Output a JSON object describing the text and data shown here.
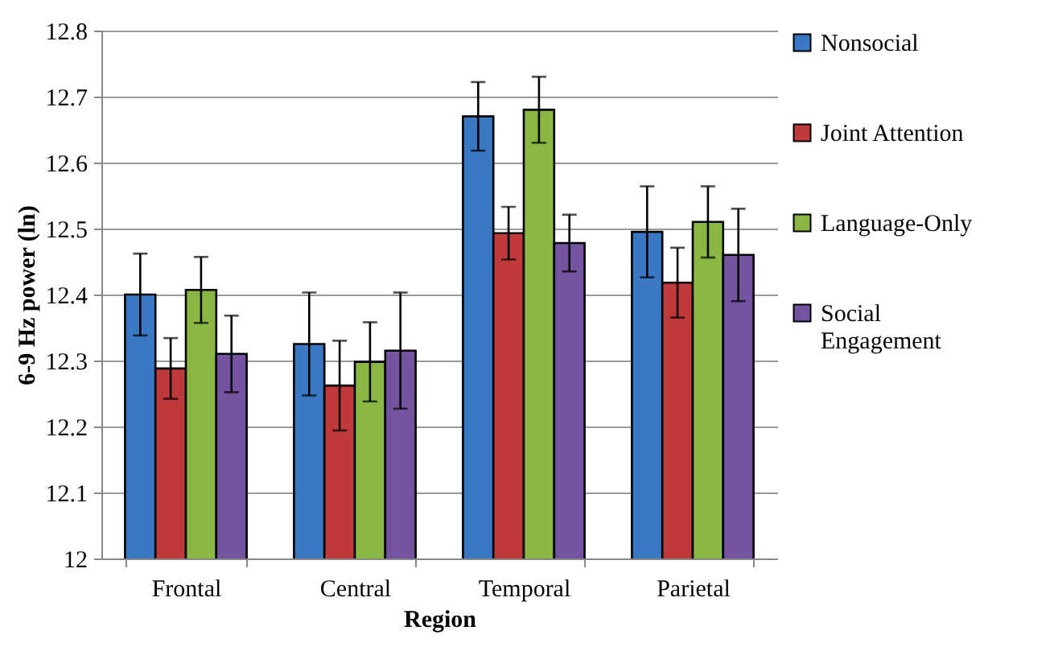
{
  "chart_data": {
    "type": "bar",
    "xlabel": "Region",
    "ylabel": "6-9 Hz power (ln)",
    "categories": [
      "Frontal",
      "Central",
      "Temporal",
      "Parietal"
    ],
    "series": [
      {
        "name": "Nonsocial",
        "color": "#3a78c3",
        "values": [
          12.4,
          12.325,
          12.67,
          12.495
        ],
        "errors": [
          0.062,
          0.078,
          0.052,
          0.069
        ]
      },
      {
        "name": "Joint Attention",
        "color": "#c0393b",
        "values": [
          12.288,
          12.262,
          12.493,
          12.418
        ],
        "errors": [
          0.046,
          0.068,
          0.04,
          0.053
        ]
      },
      {
        "name": "Language-Only",
        "color": "#8ab743",
        "values": [
          12.407,
          12.298,
          12.68,
          12.51
        ],
        "errors": [
          0.05,
          0.06,
          0.05,
          0.054
        ]
      },
      {
        "name": "Social Engagement",
        "color": "#7453a0",
        "values": [
          12.31,
          12.315,
          12.478,
          12.46
        ],
        "errors": [
          0.058,
          0.088,
          0.043,
          0.07
        ]
      }
    ],
    "ylim": [
      12,
      12.8
    ],
    "yticks": [
      12,
      12.1,
      12.2,
      12.3,
      12.4,
      12.5,
      12.6,
      12.7,
      12.8
    ],
    "grid": "y",
    "legend": "right"
  }
}
